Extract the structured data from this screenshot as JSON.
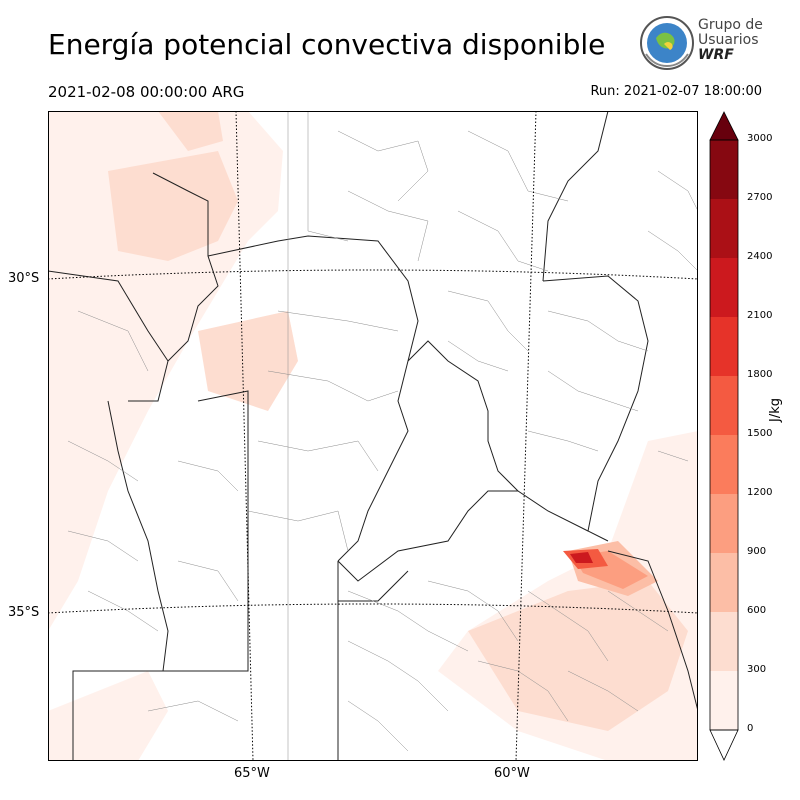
{
  "title": "Energía potencial convectiva disponible",
  "valid_time": "2021-02-08 00:00:00 ARG",
  "run_time": "Run: 2021-02-07 18:00:00",
  "logo": {
    "line1": "Grupo de",
    "line2": "Usuarios",
    "line3": "WRF"
  },
  "lat_labels": [
    "30°S",
    "35°S"
  ],
  "lon_labels": [
    "65°W",
    "60°W"
  ],
  "colorbar": {
    "unit": "J/kg",
    "ticks": [
      "0",
      "300",
      "600",
      "900",
      "1200",
      "1500",
      "1800",
      "2100",
      "2400",
      "2700",
      "3000"
    ],
    "colors": [
      "#fff1ec",
      "#fdddd0",
      "#fcbea6",
      "#fc9e80",
      "#fb7c5c",
      "#f45a41",
      "#e63329",
      "#cc191e",
      "#ab1016",
      "#860811"
    ],
    "over_color": "#67000d",
    "under_color": "#ffffff"
  }
}
